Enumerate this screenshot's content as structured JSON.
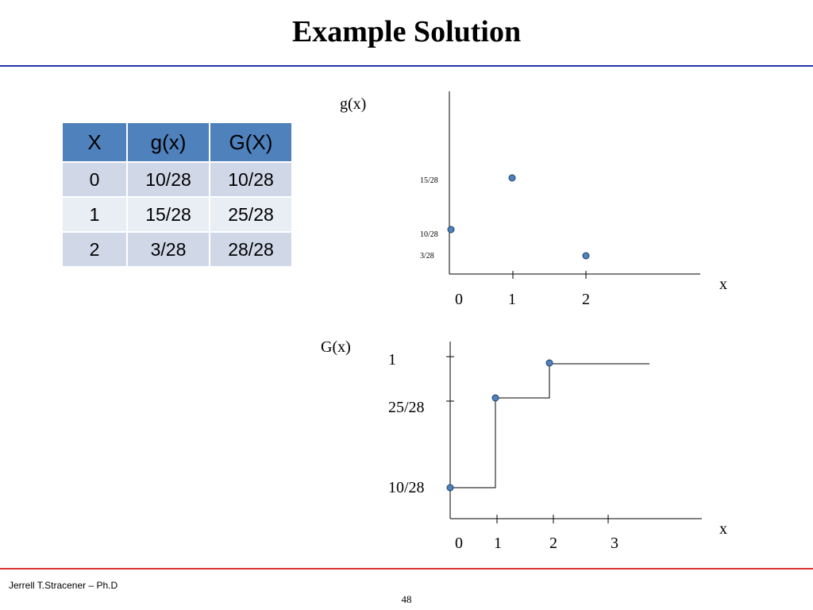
{
  "slide": {
    "title": "Example Solution",
    "footer_author": "Jerrell T.Stracener – Ph.D",
    "page_number": "48"
  },
  "colors": {
    "rule_top": "#2233aa",
    "rule_bottom": "#dd3333",
    "table_header": "#4f81bd",
    "table_row_dark": "#d0d8e8",
    "table_row_light": "#e9edf4",
    "marker": "#4f81bd"
  },
  "table": {
    "headers": [
      "X",
      "g(x)",
      "G(X)"
    ],
    "rows": [
      [
        "0",
        "10/28",
        "10/28"
      ],
      [
        "1",
        "15/28",
        "25/28"
      ],
      [
        "2",
        "3/28",
        "28/28"
      ]
    ]
  },
  "chart_data": [
    {
      "type": "scatter",
      "title": "",
      "ylabel": "g(x)",
      "xlabel": "x",
      "x_ticks": [
        "0",
        "1",
        "2"
      ],
      "y_ticks": [
        "15/28",
        "10/28",
        "3/28"
      ],
      "points": [
        {
          "x": 0,
          "y": "10/28"
        },
        {
          "x": 1,
          "y": "15/28"
        },
        {
          "x": 2,
          "y": "3/28"
        }
      ]
    },
    {
      "type": "line",
      "step": true,
      "title": "",
      "ylabel": "G(x)",
      "xlabel": "x",
      "x_ticks": [
        "0",
        "1",
        "2",
        "3"
      ],
      "y_ticks": [
        "1",
        "25/28",
        "10/28"
      ],
      "points": [
        {
          "x": 0,
          "y": "10/28"
        },
        {
          "x": 1,
          "y": "25/28"
        },
        {
          "x": 2,
          "y": "28/28"
        }
      ]
    }
  ]
}
